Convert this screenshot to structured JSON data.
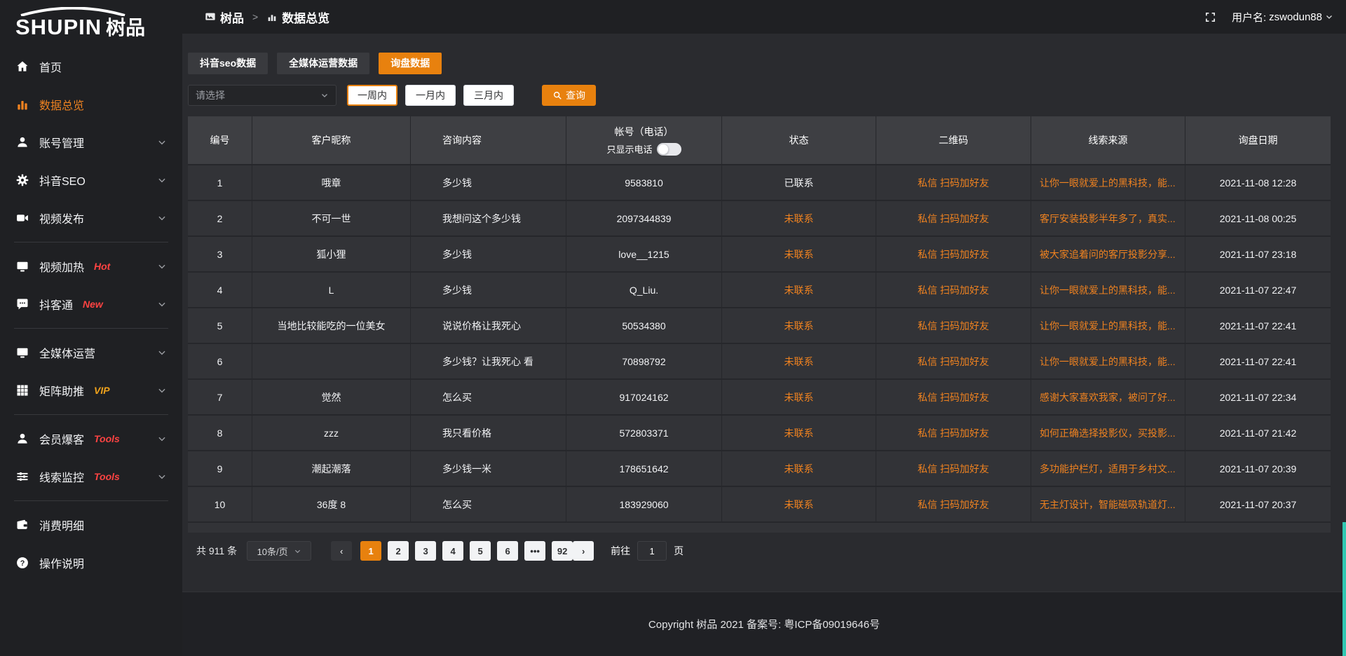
{
  "colors": {
    "accent": "#e8810e",
    "accent_text": "#ef8220",
    "badge_red": "#ff4342",
    "badge_gold": "#efa21c"
  },
  "sidebar": {
    "logo_en": "SHUPIN",
    "logo_cn": "树品",
    "items": [
      {
        "label": "首页",
        "icon": "home-icon"
      },
      {
        "label": "数据总览",
        "icon": "bar-chart-icon",
        "active": true
      },
      {
        "label": "账号管理",
        "icon": "user-icon",
        "chevron": true
      },
      {
        "label": "抖音SEO",
        "icon": "gear-icon",
        "chevron": true
      },
      {
        "label": "视频发布",
        "icon": "video-icon",
        "chevron": true
      },
      {
        "divider": true
      },
      {
        "label": "视频加热",
        "icon": "monitor-icon",
        "badge": "Hot",
        "badge_color": "red",
        "chevron": true
      },
      {
        "label": "抖客通",
        "icon": "chat-icon",
        "badge": "New",
        "badge_color": "red",
        "chevron": true
      },
      {
        "divider": true
      },
      {
        "label": "全媒体运营",
        "icon": "monitor-icon",
        "chevron": true
      },
      {
        "label": "矩阵助推",
        "icon": "grid-icon",
        "badge": "VIP",
        "badge_color": "gold",
        "chevron": true
      },
      {
        "divider": true
      },
      {
        "label": "会员爆客",
        "icon": "user-icon",
        "badge": "Tools",
        "badge_color": "red",
        "chevron": true
      },
      {
        "label": "线索监控",
        "icon": "sliders-icon",
        "badge": "Tools",
        "badge_color": "red",
        "chevron": true
      },
      {
        "divider": true
      },
      {
        "label": "消费明细",
        "icon": "wallet-icon"
      },
      {
        "label": "操作说明",
        "icon": "question-icon"
      }
    ]
  },
  "header": {
    "breadcrumb_root": "树品",
    "breadcrumb_sep": ">",
    "breadcrumb_current": "数据总览",
    "username_label": "用户名:",
    "username": "zswodun88"
  },
  "tabs": [
    {
      "label": "抖音seo数据"
    },
    {
      "label": "全媒体运营数据"
    },
    {
      "label": "询盘数据",
      "active": true
    }
  ],
  "filters": {
    "select_placeholder": "请选择",
    "periods": [
      {
        "label": "一周内",
        "active": true
      },
      {
        "label": "一月内"
      },
      {
        "label": "三月内"
      }
    ],
    "search_label": "查询"
  },
  "table": {
    "headers": [
      "编号",
      "客户昵称",
      "咨询内容",
      "帐号（电话）",
      "状态",
      "二维码",
      "线索来源",
      "询盘日期"
    ],
    "phone_toggle_label": "只显示电话",
    "rows": [
      {
        "num": "1",
        "nickname": "哦章",
        "content": "多少钱",
        "account": "9583810",
        "status": "已联系",
        "status_type": "contacted",
        "qr": "私信 扫码加好友",
        "source": "让你一眼就爱上的黑科技，能...",
        "date": "2021-11-08 12:28"
      },
      {
        "num": "2",
        "nickname": "不可一世",
        "content": "我想问这个多少钱",
        "account": "2097344839",
        "status": "未联系",
        "status_type": "uncontacted",
        "qr": "私信 扫码加好友",
        "source": "客厅安装投影半年多了，真实...",
        "date": "2021-11-08 00:25"
      },
      {
        "num": "3",
        "nickname": "狐小狸",
        "content": "多少钱",
        "account": "love__1215",
        "status": "未联系",
        "status_type": "uncontacted",
        "qr": "私信 扫码加好友",
        "source": "被大家追着问的客厅投影分享...",
        "date": "2021-11-07 23:18"
      },
      {
        "num": "4",
        "nickname": "L",
        "content": "多少钱",
        "account": "Q_Liu.",
        "status": "未联系",
        "status_type": "uncontacted",
        "qr": "私信 扫码加好友",
        "source": "让你一眼就爱上的黑科技，能...",
        "date": "2021-11-07 22:47"
      },
      {
        "num": "5",
        "nickname": "当地比较能吃的一位美女",
        "content": "说说价格让我死心",
        "account": "50534380",
        "status": "未联系",
        "status_type": "uncontacted",
        "qr": "私信 扫码加好友",
        "source": "让你一眼就爱上的黑科技，能...",
        "date": "2021-11-07 22:41"
      },
      {
        "num": "6",
        "nickname": "",
        "content": "多少钱？让我死心 看",
        "account": "70898792",
        "status": "未联系",
        "status_type": "uncontacted",
        "qr": "私信 扫码加好友",
        "source": "让你一眼就爱上的黑科技，能...",
        "date": "2021-11-07 22:41"
      },
      {
        "num": "7",
        "nickname": "觉然",
        "content": "怎么买",
        "account": "917024162",
        "status": "未联系",
        "status_type": "uncontacted",
        "qr": "私信 扫码加好友",
        "source": "感谢大家喜欢我家，被问了好...",
        "date": "2021-11-07 22:34"
      },
      {
        "num": "8",
        "nickname": "zzz",
        "content": "我只看价格",
        "account": "572803371",
        "status": "未联系",
        "status_type": "uncontacted",
        "qr": "私信 扫码加好友",
        "source": "如何正确选择投影仪，买投影...",
        "date": "2021-11-07 21:42"
      },
      {
        "num": "9",
        "nickname": "潮起潮落",
        "content": "多少钱一米",
        "account": "178651642",
        "status": "未联系",
        "status_type": "uncontacted",
        "qr": "私信 扫码加好友",
        "source": "多功能护栏灯，适用于乡村文...",
        "date": "2021-11-07 20:39"
      },
      {
        "num": "10",
        "nickname": "36度 8",
        "content": "怎么买",
        "account": "183929060",
        "status": "未联系",
        "status_type": "uncontacted",
        "qr": "私信 扫码加好友",
        "source": "无主灯设计，智能磁吸轨道灯...",
        "date": "2021-11-07 20:37"
      }
    ]
  },
  "pagination": {
    "total": "共 911 条",
    "page_size": "10条/页",
    "pages": [
      "1",
      "2",
      "3",
      "4",
      "5",
      "6",
      "•••",
      "92"
    ],
    "active_page": "1",
    "prev": "‹",
    "next": "›",
    "goto_label": "前往",
    "goto_value": "1",
    "page_unit": "页"
  },
  "footer": {
    "copyright": "Copyright 树品 2021 备案号: 粤ICP备09019646号"
  }
}
